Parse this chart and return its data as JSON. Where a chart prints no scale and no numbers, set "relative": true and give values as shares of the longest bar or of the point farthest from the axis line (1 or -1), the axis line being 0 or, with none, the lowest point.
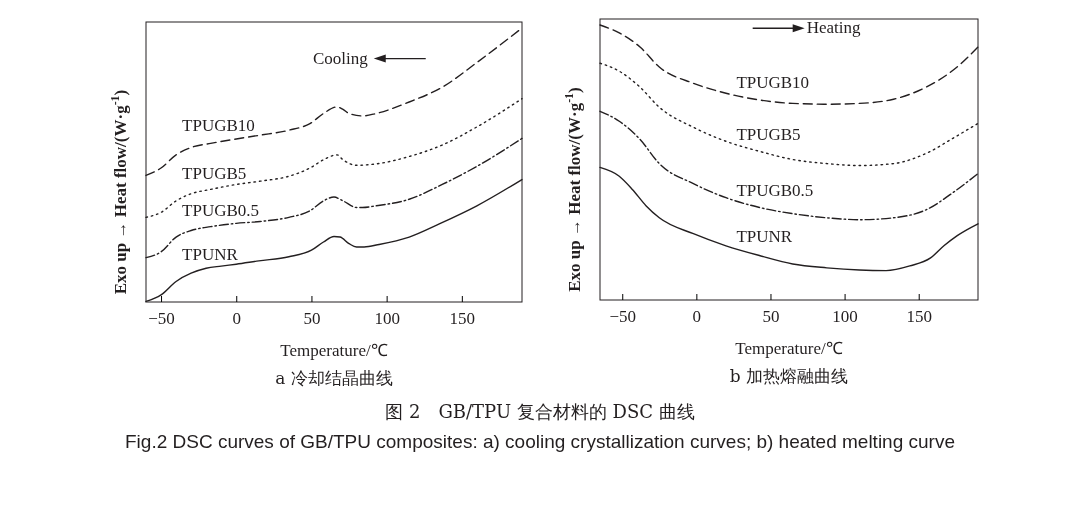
{
  "chart_data": [
    {
      "type": "line",
      "title": "a 冷却结晶曲线",
      "xlabel": "Temperature/℃",
      "ylabel": "Exo up → Heat flow/(W·g$^{-1}$)",
      "relative": true,
      "xlim": [
        -60,
        190
      ],
      "xticks": [
        -50,
        0,
        50,
        100,
        150
      ],
      "grid": false,
      "marker": "none",
      "annotations": [
        "Cooling",
        "图 2　GB/TPU 复合材料的 DSC 曲线",
        "Fig.2 DSC curves of GB/TPU composites: a) cooling crystallization curves; b) heated melting curve"
      ],
      "series": [
        {
          "name": "TPUGB10",
          "color": "#231f20",
          "line_style": "dashed",
          "x": [
            -60,
            -50,
            -40,
            -30,
            -17,
            0,
            16,
            35,
            49,
            58,
            67,
            71,
            75,
            84,
            93,
            115,
            137,
            160,
            190
          ],
          "values": [
            0.462,
            0.489,
            0.537,
            0.564,
            0.579,
            0.595,
            0.609,
            0.627,
            0.651,
            0.688,
            0.712,
            0.703,
            0.688,
            0.679,
            0.688,
            0.73,
            0.784,
            0.874,
            1
          ]
        },
        {
          "name": "TPUGB5",
          "color": "#231f20",
          "line_style": "dotted",
          "x": [
            -60,
            -50,
            -40,
            -30,
            -17,
            0,
            16,
            35,
            49,
            58,
            67,
            71,
            80,
            93,
            115,
            137,
            160,
            190
          ],
          "values": [
            0.309,
            0.327,
            0.369,
            0.395,
            0.411,
            0.429,
            0.441,
            0.459,
            0.489,
            0.519,
            0.537,
            0.519,
            0.499,
            0.504,
            0.531,
            0.573,
            0.639,
            0.742
          ]
        },
        {
          "name": "TPUGB0.5",
          "color": "#231f20",
          "line_style": "dashdot",
          "x": [
            -60,
            -50,
            -40,
            -30,
            -17,
            0,
            16,
            35,
            49,
            58,
            65,
            71,
            80,
            84,
            93,
            115,
            137,
            160,
            190
          ],
          "values": [
            0.162,
            0.183,
            0.237,
            0.261,
            0.275,
            0.287,
            0.294,
            0.309,
            0.333,
            0.369,
            0.383,
            0.369,
            0.345,
            0.345,
            0.351,
            0.375,
            0.429,
            0.495,
            0.597
          ]
        },
        {
          "name": "TPUNR",
          "color": "#231f20",
          "line_style": "solid",
          "x": [
            -60,
            -50,
            -40,
            -30,
            -20,
            -10,
            0,
            15,
            35,
            50,
            58,
            65,
            69,
            75,
            80,
            85,
            95,
            115,
            135,
            160,
            190
          ],
          "values": [
            0.002,
            0.026,
            0.075,
            0.105,
            0.123,
            0.131,
            0.138,
            0.15,
            0.165,
            0.189,
            0.219,
            0.239,
            0.237,
            0.213,
            0.201,
            0.201,
            0.21,
            0.237,
            0.285,
            0.351,
            0.447
          ]
        }
      ]
    },
    {
      "type": "line",
      "title": "b 加热熔融曲线",
      "xlabel": "Temperature/℃",
      "ylabel": "Exo up → Heat flow/(W·g$^{-1}$)",
      "relative": true,
      "xlim": [
        -65,
        190
      ],
      "xticks": [
        -50,
        0,
        50,
        100,
        150
      ],
      "grid": false,
      "marker": "none",
      "annotations": [
        "Heating"
      ],
      "series": [
        {
          "name": "TPUGB10",
          "color": "#231f20",
          "line_style": "dashed",
          "x": [
            -65,
            -52,
            -38,
            -25,
            -2,
            20,
            43,
            65,
            88,
            110,
            133,
            155,
            174,
            190
          ],
          "values": [
            1,
            0.971,
            0.92,
            0.847,
            0.788,
            0.752,
            0.727,
            0.715,
            0.712,
            0.715,
            0.73,
            0.774,
            0.839,
            0.92
          ]
        },
        {
          "name": "TPUGB5",
          "color": "#231f20",
          "line_style": "dotted",
          "x": [
            -65,
            -52,
            -38,
            -25,
            -2,
            20,
            43,
            65,
            88,
            110,
            133,
            155,
            174,
            190
          ],
          "values": [
            0.861,
            0.832,
            0.774,
            0.701,
            0.628,
            0.577,
            0.54,
            0.511,
            0.496,
            0.489,
            0.496,
            0.533,
            0.591,
            0.642
          ]
        },
        {
          "name": "TPUGB0.5",
          "color": "#231f20",
          "line_style": "dashdot",
          "x": [
            -65,
            -52,
            -38,
            -25,
            -2,
            20,
            43,
            65,
            88,
            110,
            133,
            155,
            174,
            190
          ],
          "values": [
            0.686,
            0.65,
            0.584,
            0.496,
            0.423,
            0.372,
            0.336,
            0.314,
            0.299,
            0.292,
            0.299,
            0.328,
            0.394,
            0.46
          ]
        },
        {
          "name": "TPUNR",
          "color": "#231f20",
          "line_style": "solid",
          "x": [
            -65,
            -52,
            -43,
            -34,
            -25,
            -2,
            20,
            43,
            65,
            88,
            110,
            128,
            144,
            158,
            167,
            176,
            190
          ],
          "values": [
            0.482,
            0.45,
            0.401,
            0.343,
            0.299,
            0.241,
            0.197,
            0.161,
            0.131,
            0.117,
            0.109,
            0.107,
            0.124,
            0.153,
            0.197,
            0.234,
            0.277
          ]
        }
      ]
    }
  ]
}
